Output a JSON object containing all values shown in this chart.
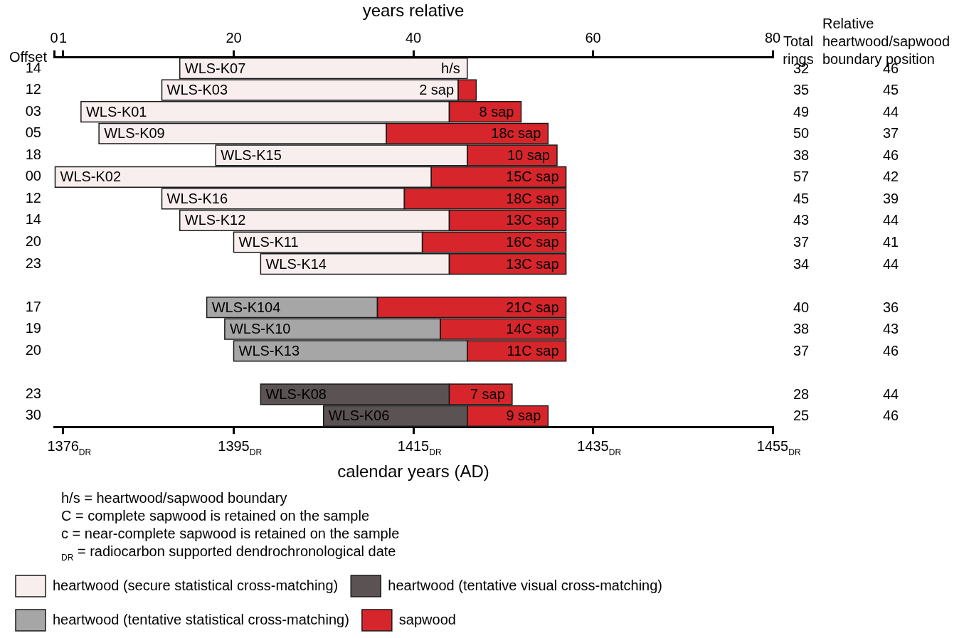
{
  "chart_data": {
    "type": "bar",
    "orientation": "horizontal",
    "x2label": "years relative",
    "xlabel": "calendar years (AD)",
    "ylabel": "Offset",
    "categories": [
      "14",
      "12",
      "03",
      "05",
      "18",
      "00",
      "12",
      "14",
      "20",
      "23",
      null,
      "17",
      "19",
      "20",
      null,
      "23",
      "30"
    ],
    "series": [
      {
        "name": "heartwood (secure statistical cross-matching)",
        "color": "#f9eeee",
        "axis": "x2",
        "base": [
          14,
          12,
          3,
          5,
          18,
          0,
          12,
          14,
          20,
          23,
          null,
          null,
          null,
          null,
          null,
          null,
          null
        ],
        "values": [
          32,
          33,
          41,
          32,
          28,
          42,
          27,
          30,
          21,
          21,
          null,
          null,
          null,
          null,
          null,
          null,
          null
        ],
        "value_labels": [
          "WLS-K07",
          "WLS-K03",
          "WLS-K01",
          "WLS-K09",
          "WLS-K15",
          "WLS-K02",
          "WLS-K16",
          "WLS-K12",
          "WLS-K11",
          "WLS-K14",
          null,
          null,
          null,
          null,
          null,
          null,
          null
        ]
      },
      {
        "name": "heartwood (tentative visual cross-matching)",
        "color": "#5b5253",
        "axis": "x2",
        "base": [
          null,
          null,
          null,
          null,
          null,
          null,
          null,
          null,
          null,
          null,
          null,
          null,
          null,
          null,
          null,
          23,
          30
        ],
        "values": [
          null,
          null,
          null,
          null,
          null,
          null,
          null,
          null,
          null,
          null,
          null,
          null,
          null,
          null,
          null,
          21,
          16
        ],
        "value_labels": [
          null,
          null,
          null,
          null,
          null,
          null,
          null,
          null,
          null,
          null,
          null,
          null,
          null,
          null,
          null,
          "WLS-K08",
          "WLS-K06"
        ]
      },
      {
        "name": "heartwood (tentative statistical cross-matching)",
        "color": "#a6a6a6",
        "axis": "x2",
        "base": [
          null,
          null,
          null,
          null,
          null,
          null,
          null,
          null,
          null,
          null,
          null,
          17,
          19,
          20,
          null,
          null,
          null
        ],
        "values": [
          null,
          null,
          null,
          null,
          null,
          null,
          null,
          null,
          null,
          null,
          null,
          19,
          24,
          26,
          null,
          null,
          null
        ],
        "value_labels": [
          null,
          null,
          null,
          null,
          null,
          null,
          null,
          null,
          null,
          null,
          null,
          "WLS-K104",
          "WLS-K10",
          "WLS-K13",
          null,
          null,
          null
        ]
      },
      {
        "name": "sapwood",
        "color": "#d7262b",
        "axis": "x2",
        "base": [
          null,
          45,
          44,
          37,
          46,
          42,
          39,
          44,
          41,
          44,
          null,
          36,
          43,
          46,
          null,
          44,
          46
        ],
        "values": [
          null,
          2,
          8,
          18,
          10,
          15,
          18,
          13,
          16,
          13,
          null,
          21,
          14,
          11,
          null,
          7,
          9
        ],
        "value_labels": [
          null,
          "2 sap",
          "8 sap",
          "18c sap",
          "10 sap",
          "15C sap",
          "18C sap",
          "13C sap",
          "16C sap",
          "13C sap",
          null,
          "21C sap",
          "14C sap",
          "11C sap",
          null,
          "7 sap",
          "9 sap"
        ]
      }
    ],
    "x2lim": [
      0,
      80
    ],
    "x2ticks": [
      0,
      1,
      20,
      40,
      60,
      80
    ],
    "xlim": [
      1375,
      1455
    ],
    "xticks": [
      {
        "value": 1376,
        "label": "1376$_{DR}$"
      },
      {
        "value": 1395,
        "label": "1395$_{DR}$"
      },
      {
        "value": 1415,
        "label": "1415$_{DR}$"
      },
      {
        "value": 1435,
        "label": "1435$_{DR}$"
      },
      {
        "value": 1455,
        "label": "1455$_{DR}$"
      }
    ],
    "annotations": [
      "h/s",
      "Total rings",
      "32",
      "35",
      "49",
      "50",
      "38",
      "57",
      "45",
      "43",
      "37",
      "34",
      "40",
      "38",
      "37",
      "28",
      "25",
      "Relative heartwood/sapwood boundary position",
      "46",
      "45",
      "44",
      "37",
      "46",
      "42",
      "39",
      "44",
      "41",
      "44",
      "36",
      "43",
      "46",
      "44",
      "46",
      "h/s = heartwood/sapwood boundary",
      "C = complete sapwood is retained on the sample",
      "c = near-complete sapwood is retained on the sample",
      "$_{DR}$ = radiocarbon supported dendrochronological date"
    ],
    "grid": false,
    "legend": "bottom"
  }
}
